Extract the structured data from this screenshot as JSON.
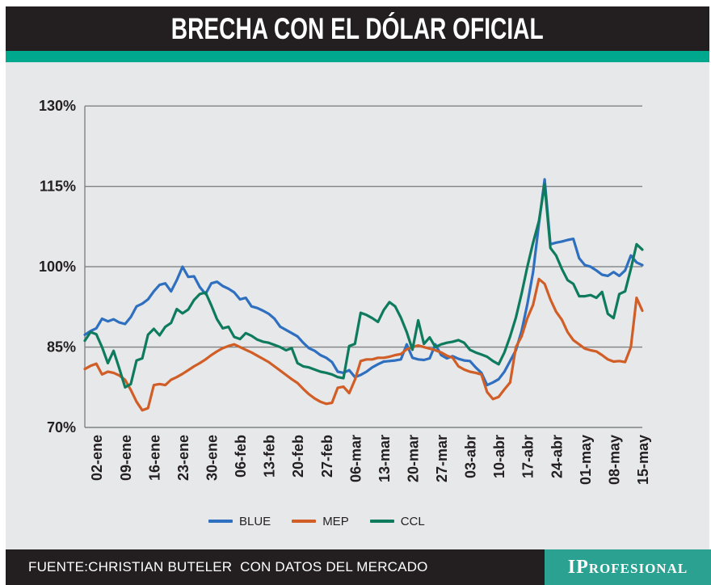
{
  "header": {
    "title": "BRECHA CON EL DÓLAR OFICIAL"
  },
  "footer": {
    "source": "FUENTE:CHRISTIAN BUTELER  CON DATOS DEL MERCADO",
    "brand": "IProfesional"
  },
  "colors": {
    "bar_dark": "#231f20",
    "accent_teal": "#00a88e",
    "logo_teal": "#2ba191",
    "panel_gray": "#e7e8e9",
    "grid_gray": "#7f8284",
    "text_dark": "#231f20",
    "blue": "#2e6fbf",
    "mep_orange": "#d05e26",
    "ccl_green": "#0e7b5e"
  },
  "chart_data": {
    "type": "line",
    "title": "BRECHA CON EL DÓLAR OFICIAL",
    "ylabel": "",
    "xlabel": "",
    "ylim": [
      70,
      130
    ],
    "y_ticks": [
      "130%",
      "115%",
      "100%",
      "85%",
      "70%"
    ],
    "grid": "horizontal",
    "legend_position": "bottom",
    "x_labels": [
      "02-ene",
      "09-ene",
      "16-ene",
      "23-ene",
      "30-ene",
      "06-feb",
      "13-feb",
      "20-feb",
      "27-feb",
      "06-mar",
      "13-mar",
      "20-mar",
      "27-mar",
      "03-abr",
      "10-abr",
      "17-abr",
      "24-abr",
      "01-may",
      "08-may",
      "15-may"
    ],
    "points_per_label": 5,
    "first_label_point_index": 2,
    "unit": "percent",
    "series": [
      {
        "name": "BLUE",
        "color": "#2e6fbf",
        "values": [
          87.3,
          88.0,
          88.5,
          90.3,
          89.8,
          90.2,
          89.6,
          89.3,
          90.6,
          92.6,
          93.1,
          93.9,
          95.4,
          96.6,
          96.9,
          95.4,
          97.5,
          100.0,
          98.1,
          98.2,
          96.2,
          94.9,
          96.9,
          97.2,
          96.4,
          95.9,
          95.2,
          93.9,
          94.2,
          92.6,
          92.3,
          91.8,
          91.2,
          90.3,
          88.8,
          88.2,
          87.6,
          87.0,
          85.8,
          84.8,
          84.3,
          83.5,
          83.0,
          82.2,
          80.4,
          80.2,
          80.7,
          79.4,
          79.8,
          80.4,
          81.2,
          81.8,
          82.3,
          82.4,
          82.5,
          82.7,
          85.5,
          83.0,
          82.7,
          82.6,
          82.9,
          85.5,
          83.5,
          82.9,
          83.3,
          82.8,
          82.5,
          82.4,
          81.2,
          80.2,
          77.9,
          78.4,
          79.0,
          80.4,
          82.4,
          84.4,
          88.0,
          93.0,
          99.0,
          108.0,
          116.3,
          104.2,
          104.5,
          104.7,
          105.0,
          105.2,
          101.6,
          100.3,
          100.0,
          99.3,
          98.5,
          98.3,
          99.0,
          98.3,
          99.3,
          102.1,
          100.8,
          100.3
        ]
      },
      {
        "name": "MEP",
        "color": "#d05e26",
        "values": [
          80.9,
          81.5,
          81.9,
          79.9,
          80.4,
          80.2,
          79.7,
          78.9,
          77.0,
          74.8,
          73.2,
          73.6,
          77.9,
          78.1,
          77.9,
          78.9,
          79.4,
          80.0,
          80.7,
          81.4,
          82.0,
          82.7,
          83.5,
          84.2,
          84.8,
          85.2,
          85.5,
          85.0,
          84.5,
          84.0,
          83.4,
          82.8,
          82.2,
          81.4,
          80.6,
          79.8,
          79.0,
          78.3,
          77.2,
          76.2,
          75.4,
          74.8,
          74.4,
          74.6,
          77.4,
          77.6,
          76.4,
          78.9,
          82.4,
          82.7,
          82.7,
          83.0,
          83.0,
          83.2,
          83.5,
          83.7,
          84.6,
          85.0,
          85.3,
          85.0,
          84.7,
          84.4,
          84.0,
          83.4,
          83.0,
          81.4,
          80.8,
          80.4,
          80.2,
          79.9,
          76.6,
          75.3,
          75.7,
          77.1,
          78.4,
          85.0,
          87.0,
          90.4,
          92.9,
          97.7,
          96.8,
          93.9,
          91.6,
          90.1,
          87.8,
          86.3,
          85.5,
          84.7,
          84.4,
          84.2,
          83.5,
          82.7,
          82.3,
          82.4,
          82.2,
          85.0,
          94.2,
          91.8
        ]
      },
      {
        "name": "CCL",
        "color": "#0e7b5e",
        "values": [
          86.2,
          87.8,
          87.4,
          85.0,
          82.0,
          84.3,
          81.0,
          77.5,
          78.1,
          82.5,
          82.9,
          87.3,
          88.4,
          87.2,
          88.8,
          89.5,
          92.1,
          91.3,
          92.0,
          93.8,
          94.9,
          95.2,
          92.8,
          90.2,
          88.5,
          88.8,
          86.9,
          86.5,
          87.6,
          87.1,
          86.4,
          86.0,
          85.8,
          85.4,
          85.0,
          84.4,
          84.8,
          82.0,
          81.4,
          81.2,
          80.8,
          80.4,
          80.2,
          79.9,
          79.4,
          79.2,
          85.2,
          85.6,
          91.4,
          91.0,
          90.4,
          89.7,
          91.9,
          93.4,
          92.6,
          90.5,
          87.8,
          84.5,
          90.0,
          85.6,
          86.8,
          85.0,
          85.5,
          85.8,
          86.0,
          86.3,
          85.8,
          84.5,
          84.0,
          83.6,
          83.2,
          82.4,
          81.8,
          84.0,
          87.0,
          90.5,
          95.0,
          100.0,
          104.5,
          108.5,
          115.4,
          103.5,
          102.1,
          99.6,
          97.5,
          96.8,
          94.5,
          94.5,
          94.7,
          94.2,
          95.3,
          91.2,
          90.4,
          94.9,
          95.4,
          99.6,
          104.2,
          103.2
        ]
      }
    ]
  }
}
